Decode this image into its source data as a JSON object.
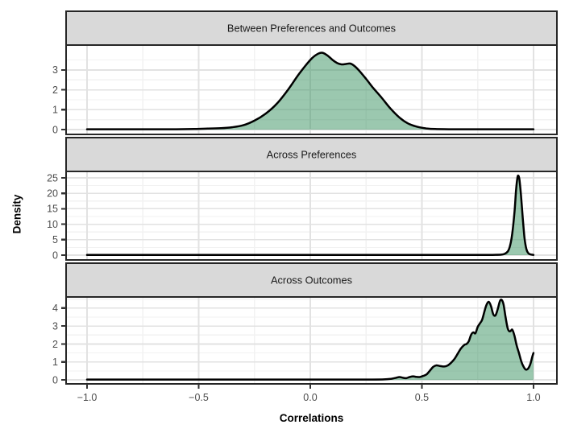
{
  "colors": {
    "fill_green": "#2E8B57",
    "fill_opacity": 0.48,
    "density_line": "#000000",
    "strip_background": "#D9D9D9",
    "strip_text": "#1A1A1A",
    "panel_background": "#FFFFFF",
    "grid_major": "#E2E2E2",
    "grid_minor": "#F2F2F2",
    "panel_border": "#262626",
    "tick_mark": "#333333",
    "tick_label": "#4D4D4D",
    "axis_title": "#000000"
  },
  "chart_data": {
    "type": "area",
    "subtype": "faceted-kernel-density",
    "xlabel": "Correlations",
    "ylabel": "Density",
    "grid": true,
    "legend": "none",
    "xlim": [
      -1.094,
      1.105
    ],
    "x_major_ticks": [
      -1.0,
      -0.5,
      0.0,
      0.5,
      1.0
    ],
    "x_tick_labels": [
      "−1.0",
      "−0.5",
      "0.0",
      "0.5",
      "1.0"
    ],
    "x_minor_ticks": [
      -0.75,
      -0.25,
      0.25,
      0.75
    ],
    "panels": [
      {
        "label": "Between Preferences and Outcomes",
        "ylim": [
          -0.24,
          4.25
        ],
        "y_major_ticks": [
          0,
          1,
          2,
          3
        ],
        "y_minor_ticks": [
          0.5,
          1.5,
          2.5,
          3.5
        ],
        "peak_summary": "unimodal with shoulder, peak ~3.85 near r=0.05",
        "points": [
          [
            -1.0,
            0.02
          ],
          [
            -0.9,
            0.02
          ],
          [
            -0.8,
            0.02
          ],
          [
            -0.7,
            0.02
          ],
          [
            -0.6,
            0.02
          ],
          [
            -0.52,
            0.03
          ],
          [
            -0.46,
            0.05
          ],
          [
            -0.4,
            0.07
          ],
          [
            -0.35,
            0.12
          ],
          [
            -0.3,
            0.22
          ],
          [
            -0.25,
            0.45
          ],
          [
            -0.2,
            0.8
          ],
          [
            -0.15,
            1.3
          ],
          [
            -0.1,
            2.0
          ],
          [
            -0.05,
            2.8
          ],
          [
            0.0,
            3.5
          ],
          [
            0.03,
            3.78
          ],
          [
            0.055,
            3.86
          ],
          [
            0.08,
            3.7
          ],
          [
            0.1,
            3.5
          ],
          [
            0.12,
            3.35
          ],
          [
            0.14,
            3.28
          ],
          [
            0.16,
            3.3
          ],
          [
            0.18,
            3.32
          ],
          [
            0.2,
            3.18
          ],
          [
            0.22,
            2.95
          ],
          [
            0.25,
            2.55
          ],
          [
            0.28,
            2.12
          ],
          [
            0.32,
            1.6
          ],
          [
            0.36,
            1.05
          ],
          [
            0.4,
            0.6
          ],
          [
            0.44,
            0.3
          ],
          [
            0.48,
            0.14
          ],
          [
            0.52,
            0.06
          ],
          [
            0.56,
            0.03
          ],
          [
            0.62,
            0.02
          ],
          [
            0.7,
            0.02
          ],
          [
            0.8,
            0.02
          ],
          [
            0.9,
            0.02
          ],
          [
            1.0,
            0.02
          ]
        ]
      },
      {
        "label": "Across Preferences",
        "ylim": [
          -1.56,
          27.08
        ],
        "y_major_ticks": [
          0,
          5,
          10,
          15,
          20,
          25
        ],
        "y_minor_ticks": [
          2.5,
          7.5,
          12.5,
          17.5,
          22.5
        ],
        "peak_summary": "narrow spike, peak ~25.7 near r=0.93",
        "points": [
          [
            -1.0,
            0.05
          ],
          [
            -0.8,
            0.05
          ],
          [
            -0.6,
            0.05
          ],
          [
            -0.4,
            0.05
          ],
          [
            -0.2,
            0.05
          ],
          [
            0.0,
            0.05
          ],
          [
            0.2,
            0.05
          ],
          [
            0.4,
            0.05
          ],
          [
            0.5,
            0.05
          ],
          [
            0.6,
            0.05
          ],
          [
            0.7,
            0.05
          ],
          [
            0.75,
            0.06
          ],
          [
            0.8,
            0.08
          ],
          [
            0.83,
            0.1
          ],
          [
            0.855,
            0.15
          ],
          [
            0.87,
            0.4
          ],
          [
            0.885,
            1.2
          ],
          [
            0.895,
            3.0
          ],
          [
            0.905,
            7.0
          ],
          [
            0.915,
            14.0
          ],
          [
            0.922,
            21.0
          ],
          [
            0.928,
            25.0
          ],
          [
            0.932,
            25.7
          ],
          [
            0.937,
            24.5
          ],
          [
            0.944,
            19.5
          ],
          [
            0.952,
            12.0
          ],
          [
            0.96,
            5.5
          ],
          [
            0.968,
            2.0
          ],
          [
            0.976,
            0.7
          ],
          [
            0.985,
            0.25
          ],
          [
            1.0,
            0.08
          ]
        ]
      },
      {
        "label": "Across Outcomes",
        "ylim": [
          -0.22,
          4.62
        ],
        "y_major_ticks": [
          0,
          1,
          2,
          3,
          4
        ],
        "y_minor_ticks": [
          0.5,
          1.5,
          2.5,
          3.5,
          4.5
        ],
        "peak_summary": "wiggly right-skewed mass, twin peaks ~4.35 at r=0.80 and ~4.45 at r=0.86, upturn to ~1.5 at r=1.0",
        "points": [
          [
            -1.0,
            0.02
          ],
          [
            -0.8,
            0.02
          ],
          [
            -0.6,
            0.02
          ],
          [
            -0.4,
            0.02
          ],
          [
            -0.2,
            0.02
          ],
          [
            0.0,
            0.02
          ],
          [
            0.1,
            0.02
          ],
          [
            0.2,
            0.02
          ],
          [
            0.28,
            0.02
          ],
          [
            0.33,
            0.03
          ],
          [
            0.36,
            0.06
          ],
          [
            0.385,
            0.12
          ],
          [
            0.4,
            0.16
          ],
          [
            0.415,
            0.12
          ],
          [
            0.43,
            0.1
          ],
          [
            0.445,
            0.16
          ],
          [
            0.46,
            0.2
          ],
          [
            0.475,
            0.17
          ],
          [
            0.49,
            0.16
          ],
          [
            0.505,
            0.22
          ],
          [
            0.52,
            0.3
          ],
          [
            0.535,
            0.5
          ],
          [
            0.55,
            0.72
          ],
          [
            0.565,
            0.81
          ],
          [
            0.58,
            0.78
          ],
          [
            0.6,
            0.75
          ],
          [
            0.615,
            0.8
          ],
          [
            0.63,
            0.95
          ],
          [
            0.645,
            1.15
          ],
          [
            0.66,
            1.45
          ],
          [
            0.675,
            1.75
          ],
          [
            0.69,
            1.95
          ],
          [
            0.7,
            2.0
          ],
          [
            0.71,
            2.15
          ],
          [
            0.72,
            2.5
          ],
          [
            0.73,
            2.65
          ],
          [
            0.74,
            2.6
          ],
          [
            0.75,
            2.95
          ],
          [
            0.76,
            3.15
          ],
          [
            0.77,
            3.35
          ],
          [
            0.78,
            3.8
          ],
          [
            0.79,
            4.2
          ],
          [
            0.8,
            4.35
          ],
          [
            0.81,
            4.1
          ],
          [
            0.82,
            3.65
          ],
          [
            0.83,
            3.6
          ],
          [
            0.84,
            3.95
          ],
          [
            0.85,
            4.4
          ],
          [
            0.858,
            4.45
          ],
          [
            0.866,
            4.2
          ],
          [
            0.875,
            3.5
          ],
          [
            0.885,
            2.85
          ],
          [
            0.895,
            2.7
          ],
          [
            0.905,
            2.8
          ],
          [
            0.915,
            2.45
          ],
          [
            0.925,
            1.9
          ],
          [
            0.935,
            1.5
          ],
          [
            0.945,
            1.05
          ],
          [
            0.955,
            0.75
          ],
          [
            0.965,
            0.58
          ],
          [
            0.975,
            0.62
          ],
          [
            0.985,
            0.85
          ],
          [
            0.995,
            1.3
          ],
          [
            1.0,
            1.5
          ]
        ]
      }
    ]
  }
}
